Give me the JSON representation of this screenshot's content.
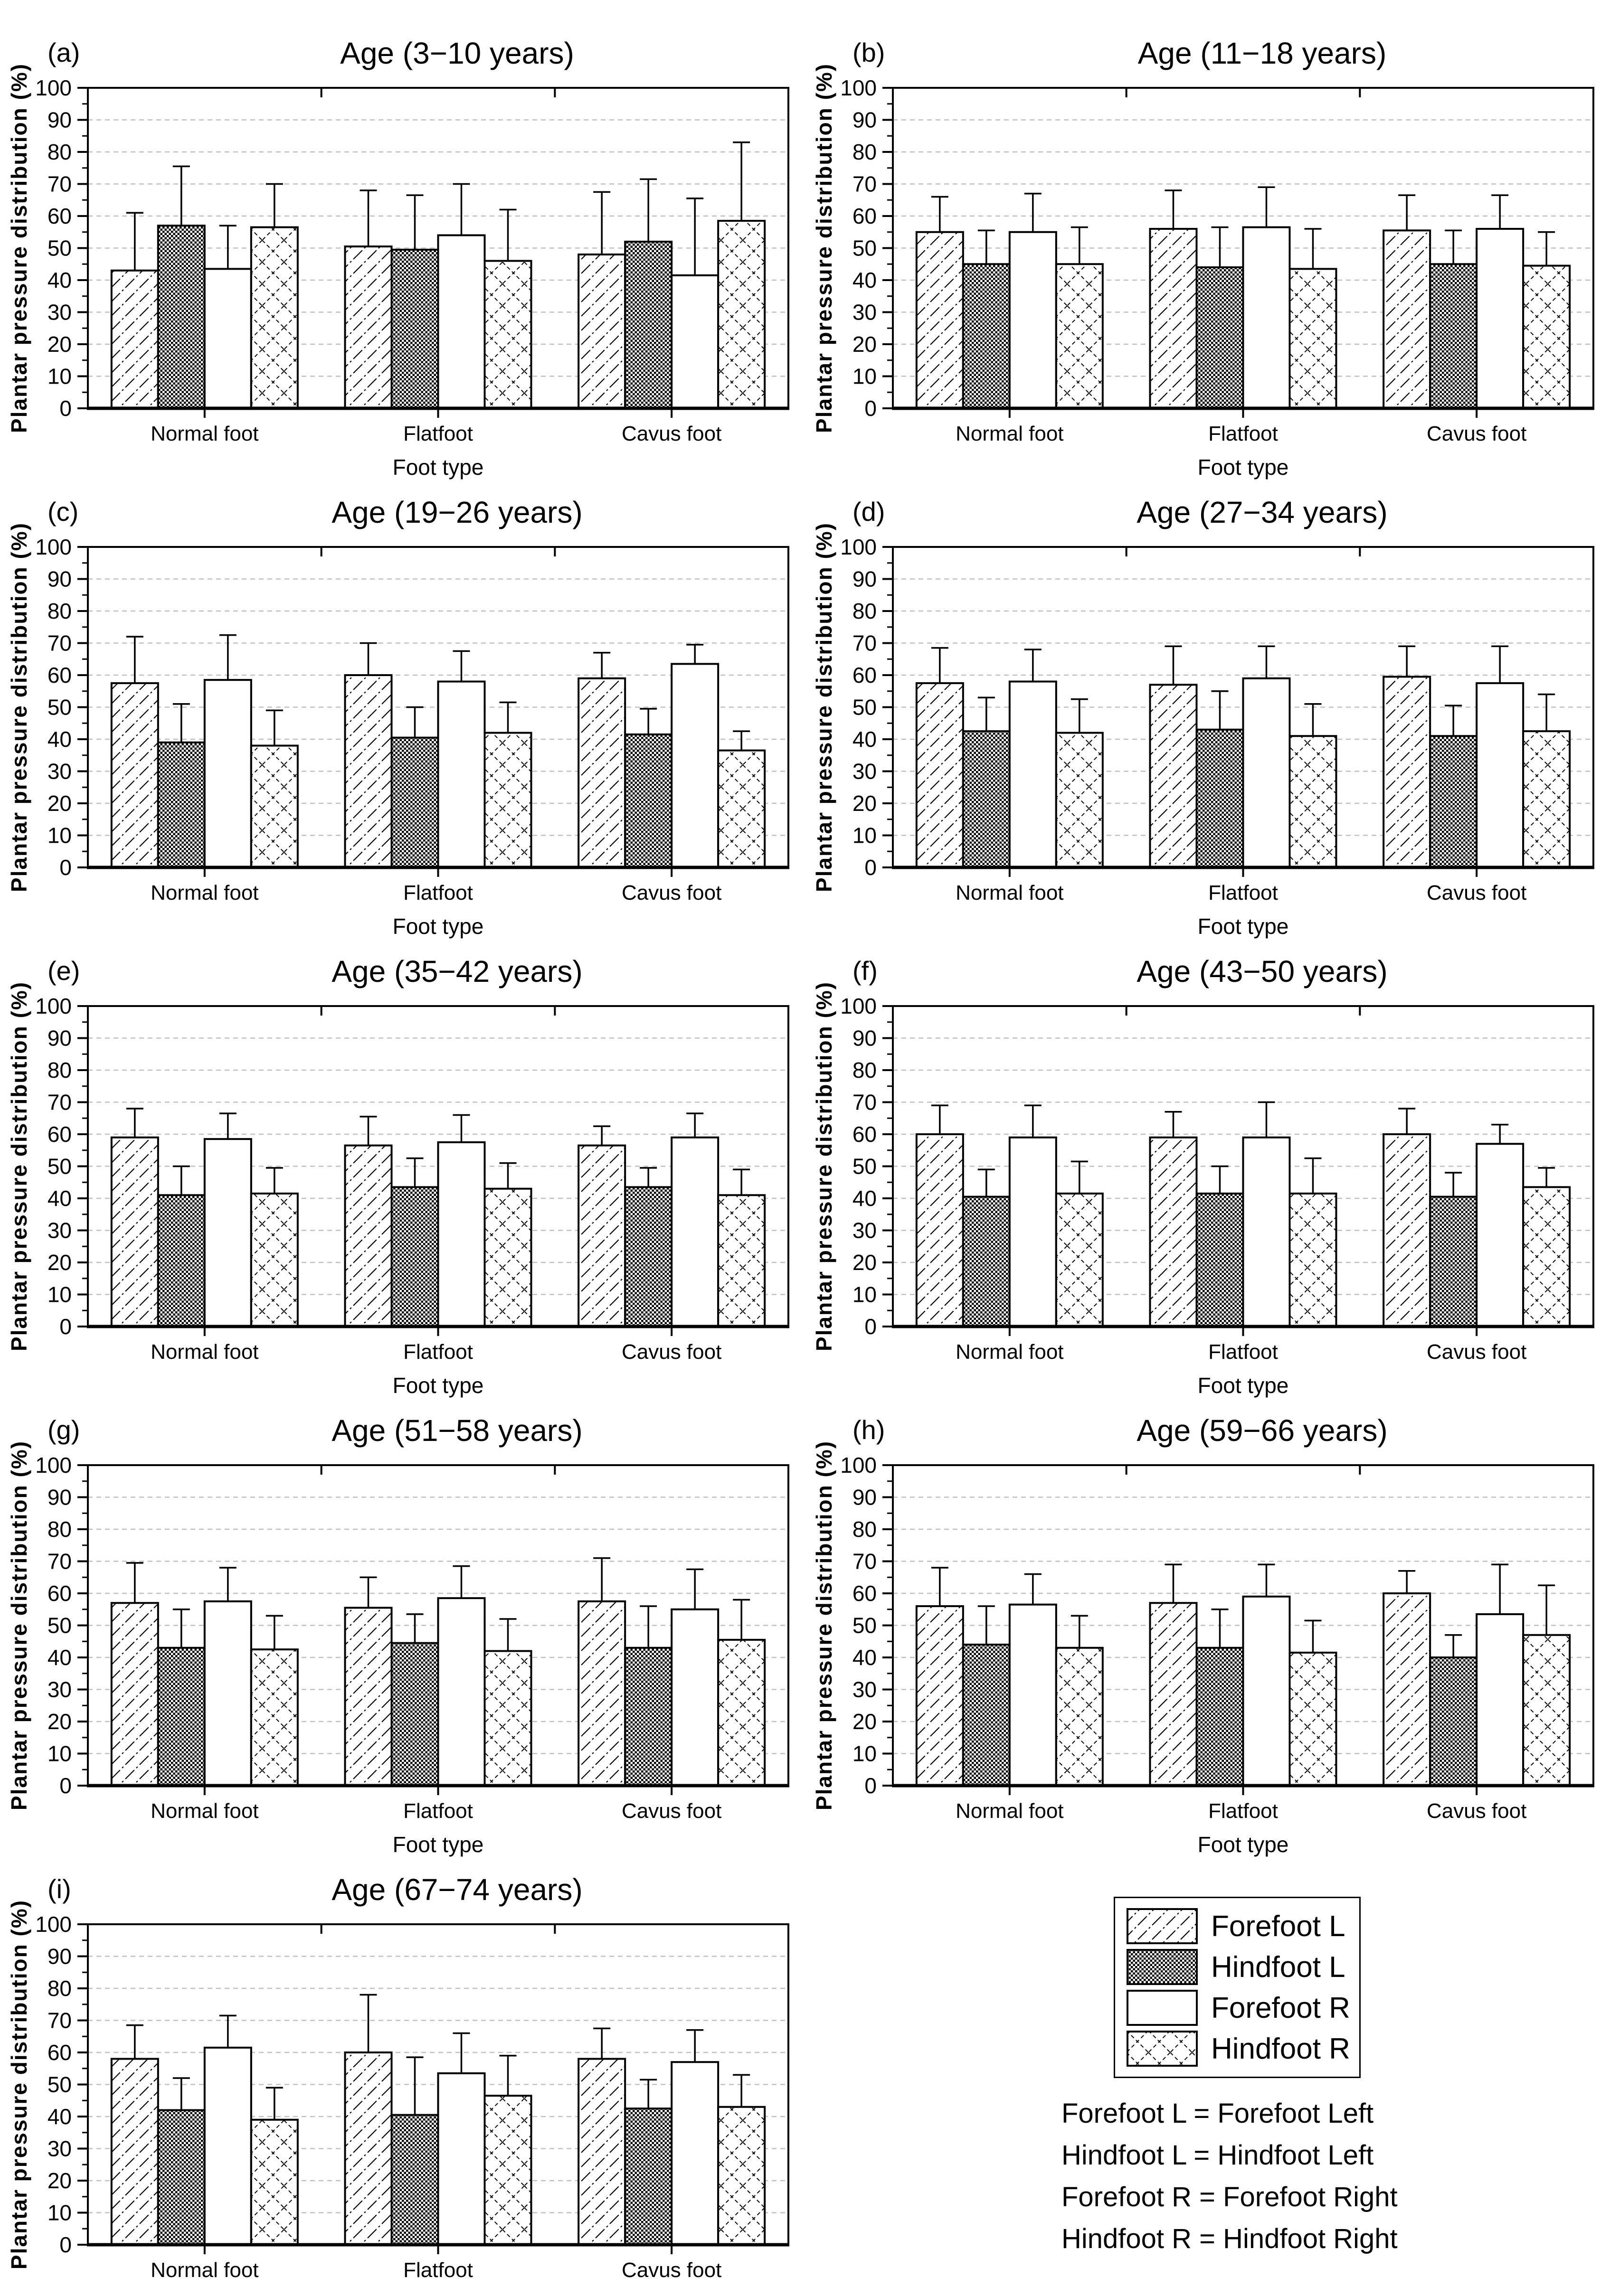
{
  "style": {
    "background": "#ffffff",
    "axis_color": "#000000",
    "grid_color": "#c0c0c0"
  },
  "figure": {
    "ylabel": "Plantar pressure distribution (%)",
    "xlabel": "Foot type",
    "categories": [
      "Normal foot",
      "Flatfoot",
      "Cavus foot"
    ],
    "series_names": [
      "Forefoot L",
      "Hindfoot L",
      "Forefoot R",
      "Hindfoot R"
    ],
    "ylim": [
      0,
      100
    ],
    "ytick_step": 10,
    "grid": "dashed horizontal"
  },
  "chart_data": [
    {
      "type": "bar",
      "panel": "(a)",
      "title": "Age (3−10 years)",
      "xlabel": "Foot type",
      "ylabel": "Plantar pressure distribution (%)",
      "ylim": [
        0,
        100
      ],
      "categories": [
        "Normal foot",
        "Flatfoot",
        "Cavus foot"
      ],
      "series": [
        {
          "name": "Forefoot L",
          "values": [
            43,
            50.5,
            48
          ],
          "errors": [
            18,
            17.5,
            19.5
          ]
        },
        {
          "name": "Hindfoot L",
          "values": [
            57,
            49.5,
            52
          ],
          "errors": [
            18.5,
            17,
            19.5
          ]
        },
        {
          "name": "Forefoot R",
          "values": [
            43.5,
            54,
            41.5
          ],
          "errors": [
            13.5,
            16,
            24
          ]
        },
        {
          "name": "Hindfoot R",
          "values": [
            56.5,
            46,
            58.5
          ],
          "errors": [
            13.5,
            16,
            24.5
          ]
        }
      ]
    },
    {
      "type": "bar",
      "panel": "(b)",
      "title": "Age (11−18 years)",
      "xlabel": "Foot type",
      "ylabel": "Plantar pressure distribution (%)",
      "ylim": [
        0,
        100
      ],
      "categories": [
        "Normal foot",
        "Flatfoot",
        "Cavus foot"
      ],
      "series": [
        {
          "name": "Forefoot L",
          "values": [
            55,
            56,
            55.5
          ],
          "errors": [
            11,
            12,
            11
          ]
        },
        {
          "name": "Hindfoot L",
          "values": [
            45,
            44,
            45
          ],
          "errors": [
            10.5,
            12.5,
            10.5
          ]
        },
        {
          "name": "Forefoot R",
          "values": [
            55,
            56.5,
            56
          ],
          "errors": [
            12,
            12.5,
            10.5
          ]
        },
        {
          "name": "Hindfoot R",
          "values": [
            45,
            43.5,
            44.5
          ],
          "errors": [
            11.5,
            12.5,
            10.5
          ]
        }
      ]
    },
    {
      "type": "bar",
      "panel": "(c)",
      "title": "Age (19−26 years)",
      "xlabel": "Foot type",
      "ylabel": "Plantar pressure distribution (%)",
      "ylim": [
        0,
        100
      ],
      "categories": [
        "Normal foot",
        "Flatfoot",
        "Cavus foot"
      ],
      "series": [
        {
          "name": "Forefoot L",
          "values": [
            57.5,
            60,
            59
          ],
          "errors": [
            14.5,
            10,
            8
          ]
        },
        {
          "name": "Hindfoot L",
          "values": [
            39,
            40.5,
            41.5
          ],
          "errors": [
            12,
            9.5,
            8
          ]
        },
        {
          "name": "Forefoot R",
          "values": [
            58.5,
            58,
            63.5
          ],
          "errors": [
            14,
            9.5,
            6
          ]
        },
        {
          "name": "Hindfoot R",
          "values": [
            38,
            42,
            36.5
          ],
          "errors": [
            11,
            9.5,
            6
          ]
        }
      ]
    },
    {
      "type": "bar",
      "panel": "(d)",
      "title": "Age (27−34 years)",
      "xlabel": "Foot type",
      "ylabel": "Plantar pressure distribution (%)",
      "ylim": [
        0,
        100
      ],
      "categories": [
        "Normal foot",
        "Flatfoot",
        "Cavus foot"
      ],
      "series": [
        {
          "name": "Forefoot L",
          "values": [
            57.5,
            57,
            59.5
          ],
          "errors": [
            11,
            12,
            9.5
          ]
        },
        {
          "name": "Hindfoot L",
          "values": [
            42.5,
            43,
            41
          ],
          "errors": [
            10.5,
            12,
            9.5
          ]
        },
        {
          "name": "Forefoot R",
          "values": [
            58,
            59,
            57.5
          ],
          "errors": [
            10,
            10,
            11.5
          ]
        },
        {
          "name": "Hindfoot R",
          "values": [
            42,
            41,
            42.5
          ],
          "errors": [
            10.5,
            10,
            11.5
          ]
        }
      ]
    },
    {
      "type": "bar",
      "panel": "(e)",
      "title": "Age (35−42 years)",
      "xlabel": "Foot type",
      "ylabel": "Plantar pressure distribution (%)",
      "ylim": [
        0,
        100
      ],
      "categories": [
        "Normal foot",
        "Flatfoot",
        "Cavus foot"
      ],
      "series": [
        {
          "name": "Forefoot L",
          "values": [
            59,
            56.5,
            56.5
          ],
          "errors": [
            9,
            9,
            6
          ]
        },
        {
          "name": "Hindfoot L",
          "values": [
            41,
            43.5,
            43.5
          ],
          "errors": [
            9,
            9,
            6
          ]
        },
        {
          "name": "Forefoot R",
          "values": [
            58.5,
            57.5,
            59
          ],
          "errors": [
            8,
            8.5,
            7.5
          ]
        },
        {
          "name": "Hindfoot R",
          "values": [
            41.5,
            43,
            41
          ],
          "errors": [
            8,
            8,
            8
          ]
        }
      ]
    },
    {
      "type": "bar",
      "panel": "(f)",
      "title": "Age (43−50 years)",
      "xlabel": "Foot type",
      "ylabel": "Plantar pressure distribution (%)",
      "ylim": [
        0,
        100
      ],
      "categories": [
        "Normal foot",
        "Flatfoot",
        "Cavus foot"
      ],
      "series": [
        {
          "name": "Forefoot L",
          "values": [
            60,
            59,
            60
          ],
          "errors": [
            9,
            8,
            8
          ]
        },
        {
          "name": "Hindfoot L",
          "values": [
            40.5,
            41.5,
            40.5
          ],
          "errors": [
            8.5,
            8.5,
            7.5
          ]
        },
        {
          "name": "Forefoot R",
          "values": [
            59,
            59,
            57
          ],
          "errors": [
            10,
            11,
            6
          ]
        },
        {
          "name": "Hindfoot R",
          "values": [
            41.5,
            41.5,
            43.5
          ],
          "errors": [
            10,
            11,
            6
          ]
        }
      ]
    },
    {
      "type": "bar",
      "panel": "(g)",
      "title": "Age (51−58 years)",
      "xlabel": "Foot type",
      "ylabel": "Plantar pressure distribution (%)",
      "ylim": [
        0,
        100
      ],
      "categories": [
        "Normal foot",
        "Flatfoot",
        "Cavus foot"
      ],
      "series": [
        {
          "name": "Forefoot L",
          "values": [
            57,
            55.5,
            57.5
          ],
          "errors": [
            12.5,
            9.5,
            13.5
          ]
        },
        {
          "name": "Hindfoot L",
          "values": [
            43,
            44.5,
            43
          ],
          "errors": [
            12,
            9,
            13
          ]
        },
        {
          "name": "Forefoot R",
          "values": [
            57.5,
            58.5,
            55
          ],
          "errors": [
            10.5,
            10,
            12.5
          ]
        },
        {
          "name": "Hindfoot R",
          "values": [
            42.5,
            42,
            45.5
          ],
          "errors": [
            10.5,
            10,
            12.5
          ]
        }
      ]
    },
    {
      "type": "bar",
      "panel": "(h)",
      "title": "Age (59−66 years)",
      "xlabel": "Foot type",
      "ylabel": "Plantar pressure distribution (%)",
      "ylim": [
        0,
        100
      ],
      "categories": [
        "Normal foot",
        "Flatfoot",
        "Cavus foot"
      ],
      "series": [
        {
          "name": "Forefoot L",
          "values": [
            56,
            57,
            60
          ],
          "errors": [
            12,
            12,
            7
          ]
        },
        {
          "name": "Hindfoot L",
          "values": [
            44,
            43,
            40
          ],
          "errors": [
            12,
            12,
            7
          ]
        },
        {
          "name": "Forefoot R",
          "values": [
            56.5,
            59,
            53.5
          ],
          "errors": [
            9.5,
            10,
            15.5
          ]
        },
        {
          "name": "Hindfoot R",
          "values": [
            43,
            41.5,
            47
          ],
          "errors": [
            10,
            10,
            15.5
          ]
        }
      ]
    },
    {
      "type": "bar",
      "panel": "(i)",
      "title": "Age (67−74 years)",
      "xlabel": "Foot type",
      "ylabel": "Plantar pressure distribution (%)",
      "ylim": [
        0,
        100
      ],
      "categories": [
        "Normal foot",
        "Flatfoot",
        "Cavus foot"
      ],
      "series": [
        {
          "name": "Forefoot L",
          "values": [
            58,
            60,
            58
          ],
          "errors": [
            10.5,
            18,
            9.5
          ]
        },
        {
          "name": "Hindfoot L",
          "values": [
            42,
            40.5,
            42.5
          ],
          "errors": [
            10,
            18,
            9
          ]
        },
        {
          "name": "Forefoot R",
          "values": [
            61.5,
            53.5,
            57
          ],
          "errors": [
            10,
            12.5,
            10
          ]
        },
        {
          "name": "Hindfoot R",
          "values": [
            39,
            46.5,
            43
          ],
          "errors": [
            10,
            12.5,
            10
          ]
        }
      ]
    }
  ],
  "legend": {
    "position": "bottom-right",
    "entries": [
      {
        "label": "Forefoot L",
        "pattern": "diagonal-hatch"
      },
      {
        "label": "Hindfoot L",
        "pattern": "checkerboard"
      },
      {
        "label": "Forefoot R",
        "pattern": "solid-white"
      },
      {
        "label": "Hindfoot R",
        "pattern": "diamond-crosshatch"
      }
    ]
  },
  "footnote": {
    "lines": [
      "Forefoot L = Forefoot Left",
      "Hindfoot L = Hindfoot Left",
      "Forefoot R = Forefoot Right",
      "Hindfoot R = Hindfoot Right"
    ]
  }
}
